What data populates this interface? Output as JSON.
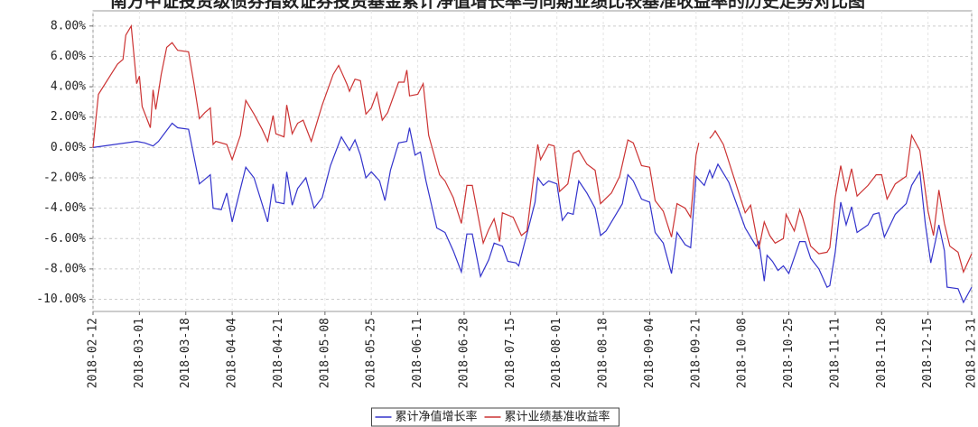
{
  "chart_data": {
    "type": "line",
    "title": "南方中证投资级债券指数证券投资基金累计净值增长率与同期业绩比较基准收益率的历史走势对比图",
    "xlim": [
      "2018-02-12",
      "2018-12-31"
    ],
    "xticks": [
      "2018-02-12",
      "2018-03-01",
      "2018-03-18",
      "2018-04-04",
      "2018-04-21",
      "2018-05-08",
      "2018-05-25",
      "2018-06-11",
      "2018-06-28",
      "2018-07-15",
      "2018-08-01",
      "2018-08-18",
      "2018-09-04",
      "2018-09-21",
      "2018-10-08",
      "2018-10-25",
      "2018-11-11",
      "2018-11-28",
      "2018-12-15",
      "2018-12-31"
    ],
    "ylim": [
      -10.8,
      9.0
    ],
    "yticks": [
      {
        "value": 8,
        "label": "8.00%"
      },
      {
        "value": 6,
        "label": "6.00%"
      },
      {
        "value": 4,
        "label": "4.00%"
      },
      {
        "value": 2,
        "label": "2.00%"
      },
      {
        "value": 0,
        "label": "0.00%"
      },
      {
        "value": -2,
        "label": "-2.00%"
      },
      {
        "value": -4,
        "label": "-4.00%"
      },
      {
        "value": -6,
        "label": "-6.00%"
      },
      {
        "value": -8,
        "label": "-8.00%"
      },
      {
        "value": -10,
        "label": "-10.00%"
      }
    ],
    "grid": true,
    "legend": "bottom",
    "series": [
      {
        "name": "累计净值增长率",
        "color": "#3333cc",
        "x": [
          "2018-02-12",
          "2018-02-28",
          "2018-03-03",
          "2018-03-06",
          "2018-03-08",
          "2018-03-13",
          "2018-03-15",
          "2018-03-19",
          "2018-03-23",
          "2018-03-27",
          "2018-03-28",
          "2018-03-31",
          "2018-04-02",
          "2018-04-04",
          "2018-04-09",
          "2018-04-12",
          "2018-04-17",
          "2018-04-19",
          "2018-04-20",
          "2018-04-23",
          "2018-04-24",
          "2018-04-26",
          "2018-04-28",
          "2018-05-01",
          "2018-05-04",
          "2018-05-07",
          "2018-05-10",
          "2018-05-14",
          "2018-05-17",
          "2018-05-19",
          "2018-05-21",
          "2018-05-23",
          "2018-05-25",
          "2018-05-28",
          "2018-05-30",
          "2018-06-01",
          "2018-06-04",
          "2018-06-07",
          "2018-06-08",
          "2018-06-10",
          "2018-06-12",
          "2018-06-14",
          "2018-06-18",
          "2018-06-21",
          "2018-06-24",
          "2018-06-27",
          "2018-06-29",
          "2018-07-01",
          "2018-07-04",
          "2018-07-07",
          "2018-07-09",
          "2018-07-12",
          "2018-07-14",
          "2018-07-17",
          "2018-07-18",
          "2018-07-22",
          "2018-07-24",
          "2018-07-25",
          "2018-07-27",
          "2018-07-29",
          "2018-08-01",
          "2018-08-03",
          "2018-08-05",
          "2018-08-07",
          "2018-08-09",
          "2018-08-12",
          "2018-08-15",
          "2018-08-17",
          "2018-08-19",
          "2018-08-22",
          "2018-08-25",
          "2018-08-27",
          "2018-08-29",
          "2018-09-01",
          "2018-09-04",
          "2018-09-06",
          "2018-09-09",
          "2018-09-12",
          "2018-09-14",
          "2018-09-17",
          "2018-09-19",
          "2018-09-21",
          "2018-09-24",
          "2018-09-26",
          "2018-09-27",
          "2018-09-29",
          "2018-10-03",
          "2018-10-09",
          "2018-10-13",
          "2018-10-14",
          "2018-10-16",
          "2018-10-17",
          "2018-10-19",
          "2018-10-21",
          "2018-10-23",
          "2018-10-25",
          "2018-10-29",
          "2018-10-31",
          "2018-11-02",
          "2018-11-05",
          "2018-11-08",
          "2018-11-09",
          "2018-11-11",
          "2018-11-13",
          "2018-11-15",
          "2018-11-17",
          "2018-11-19",
          "2018-11-23",
          "2018-11-25",
          "2018-11-27",
          "2018-11-29",
          "2018-12-03",
          "2018-12-07",
          "2018-12-09",
          "2018-12-12",
          "2018-12-14",
          "2018-12-16",
          "2018-12-19",
          "2018-12-21",
          "2018-12-22",
          "2018-12-26",
          "2018-12-28",
          "2018-12-31"
        ],
        "values": [
          0.0,
          0.4,
          0.3,
          0.1,
          0.4,
          1.6,
          1.3,
          1.2,
          -2.4,
          -1.8,
          -4.0,
          -4.1,
          -3.0,
          -4.9,
          -1.3,
          -2.0,
          -4.9,
          -2.4,
          -3.6,
          -3.7,
          -1.6,
          -3.8,
          -2.7,
          -2.0,
          -4.0,
          -3.3,
          -1.2,
          0.7,
          -0.2,
          0.5,
          -0.5,
          -2.0,
          -1.6,
          -2.2,
          -3.5,
          -1.5,
          0.3,
          0.4,
          1.3,
          -0.5,
          -0.3,
          -2.2,
          -5.3,
          -5.6,
          -6.8,
          -8.2,
          -5.7,
          -5.7,
          -8.5,
          -7.4,
          -6.3,
          -6.5,
          -7.5,
          -7.6,
          -7.8,
          -5.0,
          -3.6,
          -2.0,
          -2.5,
          -2.2,
          -2.4,
          -4.8,
          -4.3,
          -4.4,
          -2.2,
          -3.0,
          -4.0,
          -5.8,
          -5.5,
          -4.6,
          -3.7,
          -1.8,
          -2.2,
          -3.4,
          -3.6,
          -5.6,
          -6.3,
          -8.3,
          -5.6,
          -6.4,
          -6.6,
          -1.9,
          -2.5,
          -1.5,
          -2.0,
          -1.1,
          -2.3,
          -5.3,
          -6.5,
          -6.2,
          -8.8,
          -7.1,
          -7.5,
          -8.1,
          -7.8,
          -8.3,
          -6.2,
          -6.2,
          -7.3,
          -8.0,
          -9.2,
          -9.1,
          -6.9,
          -3.6,
          -5.1,
          -3.9,
          -5.6,
          -5.1,
          -4.4,
          -4.3,
          -5.9,
          -4.4,
          -3.7,
          -2.5,
          -1.6,
          -5.0,
          -7.6,
          -5.1,
          -6.8,
          -9.2,
          -9.3,
          -10.2,
          -9.2
        ]
      },
      {
        "name": "累计业绩基准收益率",
        "color": "#cc3333",
        "x": [
          "2018-02-12",
          "2018-02-14",
          "2018-02-21",
          "2018-02-23",
          "2018-02-24",
          "2018-02-26",
          "2018-02-28",
          "2018-03-01",
          "2018-03-02",
          "2018-03-05",
          "2018-03-06",
          "2018-03-07",
          "2018-03-09",
          "2018-03-11",
          "2018-03-13",
          "2018-03-15",
          "2018-03-19",
          "2018-03-21",
          "2018-03-23",
          "2018-03-25",
          "2018-03-27",
          "2018-03-28",
          "2018-03-29",
          "2018-04-02",
          "2018-04-04",
          "2018-04-07",
          "2018-04-09",
          "2018-04-12",
          "2018-04-15",
          "2018-04-17",
          "2018-04-19",
          "2018-04-20",
          "2018-04-23",
          "2018-04-24",
          "2018-04-26",
          "2018-04-28",
          "2018-04-30",
          "2018-05-03",
          "2018-05-07",
          "2018-05-11",
          "2018-05-13",
          "2018-05-16",
          "2018-05-17",
          "2018-05-19",
          "2018-05-21",
          "2018-05-23",
          "2018-05-25",
          "2018-05-27",
          "2018-05-29",
          "2018-05-31",
          "2018-06-04",
          "2018-06-06",
          "2018-06-07",
          "2018-06-08",
          "2018-06-11",
          "2018-06-13",
          "2018-06-15",
          "2018-06-19",
          "2018-06-21",
          "2018-06-24",
          "2018-06-27",
          "2018-06-29",
          "2018-07-01",
          "2018-07-05",
          "2018-07-07",
          "2018-07-09",
          "2018-07-11",
          "2018-07-12",
          "2018-07-16",
          "2018-07-19",
          "2018-07-21",
          "2018-07-25",
          "2018-07-26",
          "2018-07-29",
          "2018-07-31",
          "2018-08-02",
          "2018-08-05",
          "2018-08-07",
          "2018-08-09",
          "2018-08-12",
          "2018-08-15",
          "2018-08-17",
          "2018-08-21",
          "2018-08-24",
          "2018-08-27",
          "2018-08-29",
          "2018-09-01",
          "2018-09-04",
          "2018-09-06",
          "2018-09-09",
          "2018-09-12",
          "2018-09-14",
          "2018-09-17",
          "2018-09-19",
          "2018-09-21",
          "2018-09-22",
          "2018-09-24",
          "2018-09-26",
          "2018-09-27",
          "2018-09-28",
          "2018-10-01",
          "2018-10-09",
          "2018-10-11",
          "2018-10-14",
          "2018-10-16",
          "2018-10-18",
          "2018-10-20",
          "2018-10-23",
          "2018-10-24",
          "2018-10-27",
          "2018-10-29",
          "2018-10-30",
          "2018-11-02",
          "2018-11-05",
          "2018-11-08",
          "2018-11-09",
          "2018-11-11",
          "2018-11-13",
          "2018-11-15",
          "2018-11-17",
          "2018-11-19",
          "2018-11-23",
          "2018-11-26",
          "2018-11-28",
          "2018-11-30",
          "2018-12-03",
          "2018-12-07",
          "2018-12-09",
          "2018-12-12",
          "2018-12-15",
          "2018-12-17",
          "2018-12-19",
          "2018-12-21",
          "2018-12-23",
          "2018-12-26",
          "2018-12-28",
          "2018-12-31"
        ],
        "values": [
          0.0,
          3.5,
          5.5,
          5.8,
          7.4,
          8.0,
          4.2,
          4.7,
          2.7,
          1.3,
          3.8,
          2.5,
          4.8,
          6.6,
          6.9,
          6.4,
          6.3,
          4.2,
          1.9,
          2.3,
          2.6,
          0.2,
          0.4,
          0.2,
          -0.8,
          0.8,
          3.1,
          2.2,
          1.2,
          0.4,
          2.1,
          0.9,
          0.7,
          2.8,
          0.9,
          1.6,
          1.8,
          0.4,
          2.8,
          4.8,
          5.4,
          4.2,
          3.7,
          4.5,
          4.4,
          2.2,
          2.6,
          3.6,
          1.8,
          2.3,
          4.3,
          4.3,
          5.1,
          3.4,
          3.5,
          4.2,
          0.8,
          -1.8,
          -2.2,
          -3.3,
          -5.0,
          -2.5,
          -2.5,
          -6.3,
          -5.4,
          -4.7,
          -6.2,
          -4.3,
          -4.6,
          -5.8,
          -5.5,
          0.2,
          -0.8,
          0.2,
          0.1,
          -2.9,
          -2.4,
          -0.4,
          -0.2,
          -1.1,
          -1.5,
          -3.7,
          -3.0,
          -1.9,
          0.5,
          0.3,
          -1.2,
          -1.3,
          -3.5,
          -4.2,
          -5.9,
          -3.7,
          -4.0,
          -4.6,
          -0.5,
          0.3,
          null,
          0.6,
          0.8,
          1.1,
          0.2,
          -4.3,
          -3.8,
          -6.7,
          -4.9,
          -5.8,
          -6.3,
          -6.0,
          -4.4,
          -5.5,
          -4.1,
          -4.6,
          -6.5,
          -7.0,
          -6.9,
          -6.6,
          -3.3,
          -1.2,
          -2.9,
          -1.4,
          -3.2,
          -2.5,
          -1.8,
          -1.8,
          -3.4,
          -2.4,
          -1.9,
          0.8,
          -0.2,
          -4.2,
          -5.8,
          -2.8,
          -5.0,
          -6.5,
          -6.9,
          -8.2,
          -7.0
        ]
      }
    ]
  }
}
